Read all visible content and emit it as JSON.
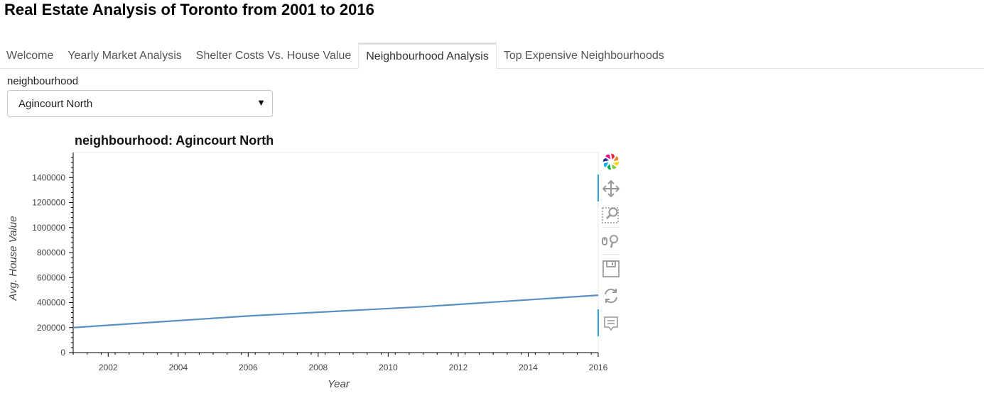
{
  "app": {
    "title": "Real Estate Analysis of Toronto from 2001 to 2016"
  },
  "tabs": [
    {
      "label": "Welcome",
      "active": false
    },
    {
      "label": "Yearly Market Analysis",
      "active": false
    },
    {
      "label": "Shelter Costs Vs. House Value",
      "active": false
    },
    {
      "label": "Neighbourhood Analysis",
      "active": true
    },
    {
      "label": "Top Expensive Neighbourhoods",
      "active": false
    }
  ],
  "selector": {
    "label": "neighbourhood",
    "value": "Agincourt North",
    "arrow_icon": "caret-down-icon"
  },
  "plot": {
    "title": "neighbourhood: Agincourt North",
    "toolbar": [
      "bokeh-logo-icon",
      "pan-icon",
      "box-zoom-icon",
      "wheel-zoom-icon",
      "save-icon",
      "reset-icon",
      "hover-icon"
    ],
    "active_tools": [
      "pan-icon",
      "hover-icon"
    ]
  },
  "chart_data": {
    "type": "line",
    "xlabel": "Year",
    "ylabel": "Avg. House Value",
    "xlim": [
      2001,
      2016
    ],
    "ylim": [
      0,
      1600000
    ],
    "x_ticks": [
      2002,
      2004,
      2006,
      2008,
      2010,
      2012,
      2014,
      2016
    ],
    "y_ticks": [
      0,
      200000,
      400000,
      600000,
      800000,
      1000000,
      1200000,
      1400000
    ],
    "line_color": "#5a8fc1",
    "grid": false,
    "series": [
      {
        "x": [
          2001,
          2006,
          2011,
          2016
        ],
        "values": [
          200000,
          293000,
          367000,
          459000
        ]
      }
    ]
  }
}
